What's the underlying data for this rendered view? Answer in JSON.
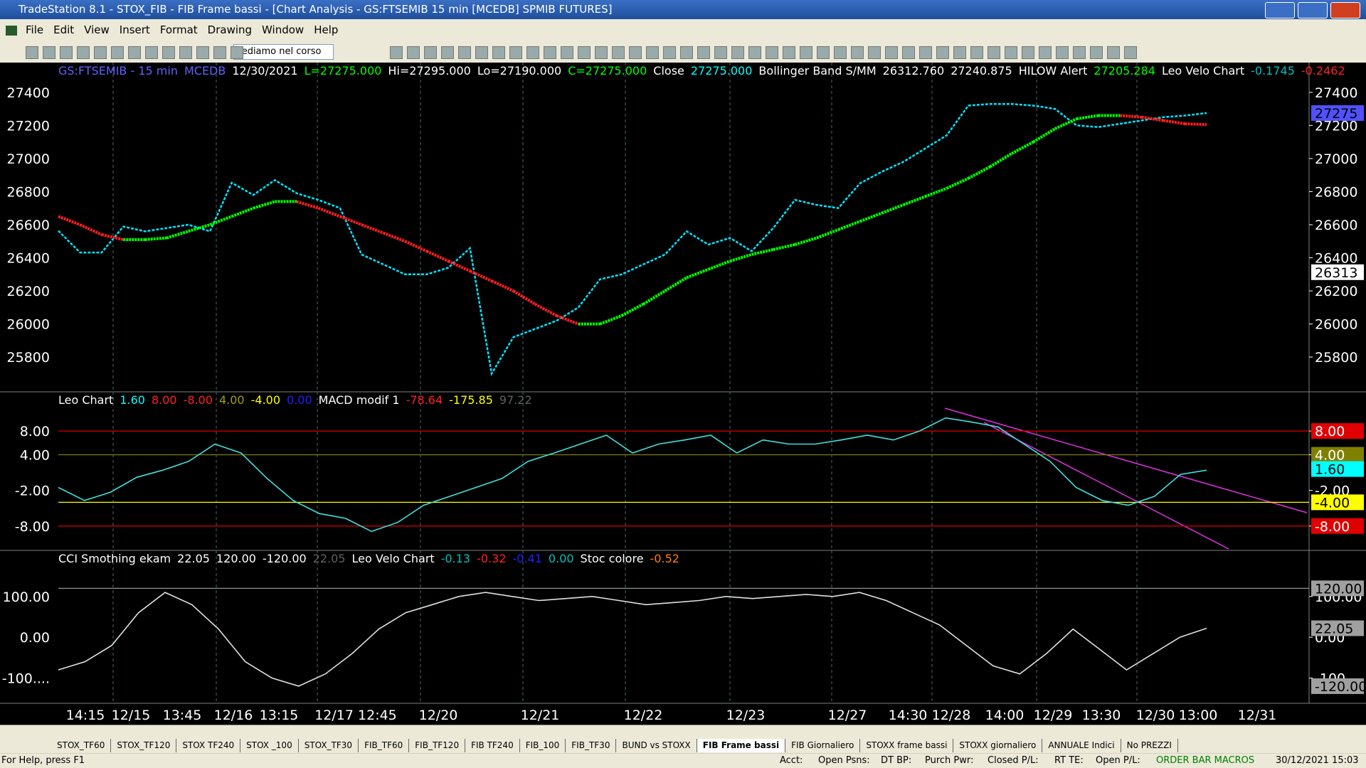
{
  "window": {
    "title": "TradeStation 8.1 - STOX_FIB - FIB Frame bassi - [Chart Analysis - GS:FTSEMIB 15 min  [MCEDB] SPMIB FUTURES]"
  },
  "menu": [
    "File",
    "Edit",
    "View",
    "Insert",
    "Format",
    "Drawing",
    "Window",
    "Help"
  ],
  "toolbar": {
    "combo": "vediamo nel corso"
  },
  "chart_data": [
    {
      "type": "line",
      "header": [
        {
          "text": "GS:FTSEMIB - 15 min",
          "color": "#6060ff"
        },
        {
          "text": "MCEDB",
          "color": "#6060ff"
        },
        {
          "text": "12/30/2021",
          "color": "#ffffff"
        },
        {
          "text": "L=27275.000",
          "color": "#00ff00"
        },
        {
          "text": "Hi=27295.000",
          "color": "#ffffff"
        },
        {
          "text": "Lo=27190.000",
          "color": "#ffffff"
        },
        {
          "text": "C=27275.000",
          "color": "#00ff00"
        },
        {
          "text": "Close",
          "color": "#ffffff"
        },
        {
          "text": "27275.000",
          "color": "#00ffff"
        },
        {
          "text": "Bollinger Band S/MM",
          "color": "#ffffff"
        },
        {
          "text": "26312.760",
          "color": "#ffffff"
        },
        {
          "text": "27240.875",
          "color": "#ffffff"
        },
        {
          "text": "HILOW Alert",
          "color": "#ffffff"
        },
        {
          "text": "27205.284",
          "color": "#00ff00"
        },
        {
          "text": "Leo Velo Chart",
          "color": "#ffffff"
        },
        {
          "text": "-0.1745",
          "color": "#00c0c0"
        },
        {
          "text": "-0.2462",
          "color": "#ff2020"
        }
      ],
      "ylim": [
        25590,
        27580
      ],
      "yticks": [
        25800,
        26000,
        26200,
        26400,
        26600,
        26800,
        27000,
        27200,
        27400
      ],
      "badges": [
        {
          "value": 27275,
          "color": "#5050ff"
        },
        {
          "value": 26313,
          "color": "#ffffff"
        }
      ],
      "series": [
        {
          "color": "#00e5ff",
          "values": [
            26563,
            26432,
            26432,
            26589,
            26560,
            26580,
            26600,
            26560,
            26853,
            26780,
            26870,
            26790,
            26750,
            26700,
            26420,
            26360,
            26300,
            26300,
            26340,
            26458,
            25700,
            25920,
            25970,
            26020,
            26100,
            26270,
            26300,
            26360,
            26420,
            26560,
            26480,
            26520,
            26440,
            26580,
            26750,
            26720,
            26700,
            26850,
            26920,
            26980,
            27060,
            27140,
            27320,
            27330,
            27330,
            27320,
            27300,
            27200,
            27190,
            27210,
            27230,
            27250,
            27260,
            27275
          ]
        },
        {
          "color": "#00ff00",
          "values": [
            26650,
            26600,
            26540,
            26510,
            26510,
            26520,
            26560,
            26600,
            26650,
            26700,
            26740,
            26740,
            26700,
            26650,
            26600,
            26550,
            26500,
            26440,
            26380,
            26320,
            26260,
            26200,
            26120,
            26050,
            26000,
            26000,
            26050,
            26120,
            26200,
            26280,
            26330,
            26380,
            26420,
            26450,
            26480,
            26520,
            26570,
            26620,
            26670,
            26720,
            26770,
            26820,
            26880,
            26950,
            27030,
            27100,
            27180,
            27240,
            27260,
            27260,
            27250,
            27230,
            27210,
            27205
          ]
        }
      ]
    },
    {
      "type": "line",
      "header": [
        {
          "text": "Leo Chart",
          "color": "#ffffff"
        },
        {
          "text": "1.60",
          "color": "#00ffff"
        },
        {
          "text": "8.00",
          "color": "#ff2020"
        },
        {
          "text": "-8.00",
          "color": "#ff2020"
        },
        {
          "text": "4.00",
          "color": "#a0a000"
        },
        {
          "text": "-4.00",
          "color": "#ffff00"
        },
        {
          "text": "0.00",
          "color": "#2020ff"
        },
        {
          "text": "MACD modif 1",
          "color": "#ffffff"
        },
        {
          "text": "-78.64",
          "color": "#ff2020"
        },
        {
          "text": "-175.85",
          "color": "#ffff00"
        },
        {
          "text": "97.22",
          "color": "#606060"
        }
      ],
      "ylim": [
        -12.1,
        14.6
      ],
      "yticks": [
        {
          "value": 8,
          "label": "8.00"
        },
        {
          "value": 4,
          "label": "4.00"
        },
        {
          "value": -2,
          "label": "-2.00"
        },
        {
          "value": -8,
          "label": "-8.00"
        }
      ],
      "badges": [
        {
          "value": 8,
          "label": "8.00",
          "color": "#e00000",
          "line": true
        },
        {
          "value": 4,
          "label": "4.00",
          "color": "#808000",
          "line": true
        },
        {
          "value": 1.6,
          "label": "1.60",
          "color": "#00ffff"
        },
        {
          "value": -4,
          "label": "-4.00",
          "color": "#ffff00",
          "line": true
        },
        {
          "value": -8,
          "label": "-8.00",
          "color": "#e00000",
          "line": true
        }
      ],
      "series": [
        {
          "color": "#40e0e0",
          "values": [
            -1.5,
            -3.7,
            -2.3,
            0.2,
            1.4,
            2.9,
            5.8,
            4.3,
            0,
            -3.7,
            -5.9,
            -6.7,
            -8.9,
            -7.4,
            -4.5,
            -3,
            -1.5,
            0,
            2.9,
            4.3,
            5.8,
            7.3,
            4.3,
            5.8,
            6.5,
            7.3,
            4.3,
            6.5,
            5.8,
            5.8,
            6.5,
            7.3,
            6.5,
            8,
            10.2,
            9.5,
            8.7,
            5.8,
            2.9,
            -1.5,
            -3.7,
            -4.5,
            -3,
            0.7,
            1.4
          ]
        }
      ]
    },
    {
      "type": "line",
      "header": [
        {
          "text": "CCI Smothing ekam",
          "color": "#ffffff"
        },
        {
          "text": "22.05",
          "color": "#ffffff"
        },
        {
          "text": "120.00",
          "color": "#ffffff"
        },
        {
          "text": "-120.00",
          "color": "#ffffff"
        },
        {
          "text": "22.05",
          "color": "#606060"
        },
        {
          "text": "Leo Velo Chart",
          "color": "#ffffff"
        },
        {
          "text": "-0.13",
          "color": "#00c0c0"
        },
        {
          "text": "-0.32",
          "color": "#ff2020"
        },
        {
          "text": "-0.41",
          "color": "#2020ff"
        },
        {
          "text": "0.00",
          "color": "#00c0c0"
        },
        {
          "text": "Stoc colore",
          "color": "#ffffff"
        },
        {
          "text": "-0.52",
          "color": "#ff8000"
        }
      ],
      "ylim": [
        -162,
        213
      ],
      "yticks": [
        {
          "value": 100,
          "label": "100.00"
        },
        {
          "value": 0,
          "label": "0.00"
        },
        {
          "value": -100,
          "label": "-100...."
        }
      ],
      "badges": [
        {
          "value": 120,
          "label": "120.00",
          "color": "#a0a0a0",
          "line": true
        },
        {
          "value": 22.05,
          "label": "22.05",
          "color": "#a0a0a0"
        },
        {
          "value": -120,
          "label": "-120.00",
          "color": "#a0a0a0"
        }
      ],
      "series": [
        {
          "color": "#e0e0e0",
          "values": [
            -80,
            -60,
            -20,
            60,
            110,
            80,
            20,
            -60,
            -100,
            -120,
            -90,
            -40,
            20,
            60,
            80,
            100,
            110,
            100,
            90,
            95,
            100,
            90,
            80,
            85,
            90,
            100,
            95,
            100,
            105,
            100,
            110,
            90,
            60,
            30,
            -20,
            -70,
            -90,
            -40,
            20,
            -30,
            -80,
            -40,
            0,
            22
          ]
        }
      ]
    }
  ],
  "xaxis": {
    "labels": [
      "14:15",
      "12/15",
      "13:45",
      "12/16",
      "13:15",
      "12/17 12:45",
      "12/20",
      "12/21",
      "12/22",
      "12/23",
      "12/27",
      "14:30",
      "12/28",
      "14:00",
      "12/29",
      "13:30",
      "12/30",
      "13:00",
      "12/31"
    ]
  },
  "tabs": [
    "STOX_TF60",
    "STOX_TF120",
    "STOX TF240",
    "STOX _100",
    "STOX_TF30",
    "FIB_TF60",
    "FIB_TF120",
    "FIB TF240",
    "FIB_100",
    "FIB_TF30",
    "BUND vs STOXX",
    "FIB Frame bassi",
    "FIB Giornaliero",
    "STOXX frame bassi",
    "STOXX giornaliero",
    "ANNUALE Indici",
    "No PREZZI"
  ],
  "active_tab": 11,
  "status": [
    "For Help, press F1",
    "Acct:",
    "Open Psns:",
    "DT BP:",
    "Purch Pwr:",
    "Closed P/L:",
    "RT TE:",
    "Open P/L:",
    "ORDER BAR MACROS",
    "30/12/2021 15:03"
  ]
}
